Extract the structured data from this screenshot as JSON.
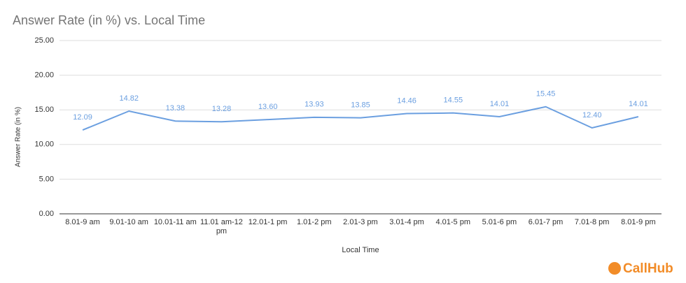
{
  "chart_data": {
    "type": "line",
    "title": "Answer Rate (in %) vs. Local Time",
    "x_label": "Local Time",
    "y_label": "Answer Rate (in %)",
    "categories": [
      "8.01-9 am",
      "9.01-10 am",
      "10.01-11 am",
      "11.01 am-12 pm",
      "12.01-1 pm",
      "1.01-2 pm",
      "2.01-3 pm",
      "3.01-4 pm",
      "4.01-5 pm",
      "5.01-6 pm",
      "6.01-7 pm",
      "7.01-8 pm",
      "8.01-9 pm"
    ],
    "series": [
      {
        "name": "Answer Rate (in %)",
        "color": "#6b9fe0",
        "values": [
          12.09,
          14.82,
          13.38,
          13.28,
          13.6,
          13.93,
          13.85,
          14.46,
          14.55,
          14.01,
          15.45,
          12.4,
          14.01
        ],
        "value_labels": [
          "12.09",
          "14.82",
          "13.38",
          "13.28",
          "13.60",
          "13.93",
          "13.85",
          "14.46",
          "14.55",
          "14.01",
          "15.45",
          "12.40",
          "14.01"
        ]
      }
    ],
    "ylim": [
      0,
      25
    ],
    "yticks": [
      {
        "value": 0,
        "label": "0.00"
      },
      {
        "value": 5,
        "label": "5.00"
      },
      {
        "value": 10,
        "label": "10.00"
      },
      {
        "value": 15,
        "label": "15.00"
      },
      {
        "value": 20,
        "label": "20.00"
      },
      {
        "value": 25,
        "label": "25.00"
      }
    ],
    "grid": true
  },
  "brand": "CallHub"
}
